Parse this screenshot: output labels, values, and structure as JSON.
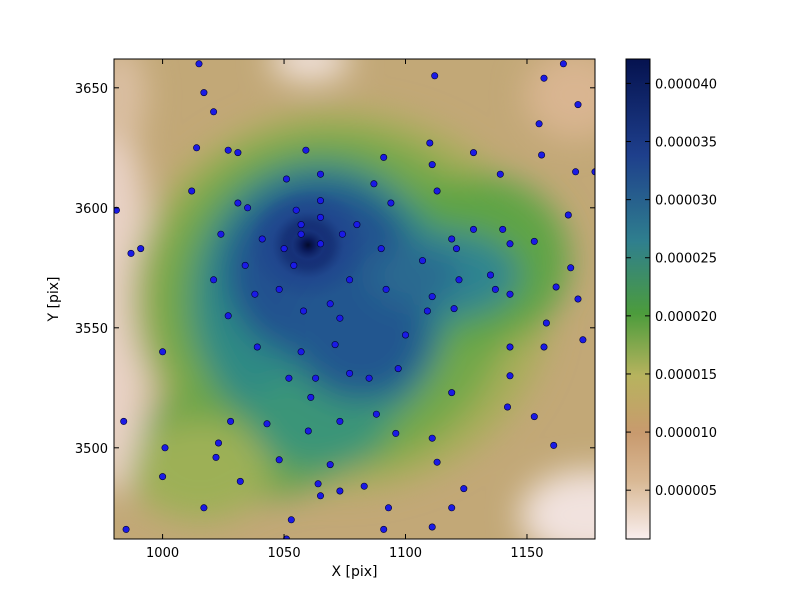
{
  "chart_data": {
    "type": "heatmap",
    "title": "",
    "xlabel": "X [pix]",
    "ylabel": "Y [pix]",
    "xlim": [
      980,
      1178
    ],
    "ylim": [
      3462,
      3662
    ],
    "xticks": [
      1000,
      1050,
      1100,
      1150
    ],
    "yticks": [
      3500,
      3550,
      3600,
      3650
    ],
    "grid": false,
    "colorbar": {
      "range": [
        8e-07,
        4.21e-05
      ],
      "ticks": [
        5e-06,
        1e-05,
        1.5e-05,
        2e-05,
        2.5e-05,
        3e-05,
        3.5e-05,
        4e-05
      ],
      "tick_labels": [
        "0.000005",
        "0.000010",
        "0.000015",
        "0.000020",
        "0.000025",
        "0.000030",
        "0.000035",
        "0.000040"
      ],
      "colormap": [
        "#f9eeee",
        "#c89a6e",
        "#b7b35e",
        "#4c9c3c",
        "#2f7f8e",
        "#1e3f8c",
        "#05124f"
      ]
    },
    "marker_color": "#1a1ae6",
    "points": [
      [
        1015,
        3660
      ],
      [
        1017,
        3648
      ],
      [
        1021,
        3640
      ],
      [
        1014,
        3625
      ],
      [
        1027,
        3624
      ],
      [
        1031,
        3623
      ],
      [
        1059,
        3624
      ],
      [
        1065,
        3614
      ],
      [
        1051,
        3612
      ],
      [
        1112,
        3655
      ],
      [
        1157,
        3654
      ],
      [
        1171,
        3643
      ],
      [
        1165,
        3660
      ],
      [
        1155,
        3635
      ],
      [
        1110,
        3627
      ],
      [
        1111,
        3618
      ],
      [
        1128,
        3623
      ],
      [
        1091,
        3621
      ],
      [
        1087,
        3610
      ],
      [
        1012,
        3607
      ],
      [
        981,
        3599
      ],
      [
        1031,
        3602
      ],
      [
        1035,
        3600
      ],
      [
        1055,
        3599
      ],
      [
        1065,
        3603
      ],
      [
        1065,
        3596
      ],
      [
        1057,
        3593
      ],
      [
        1080,
        3593
      ],
      [
        1094,
        3602
      ],
      [
        1113,
        3607
      ],
      [
        1139,
        3614
      ],
      [
        1156,
        3622
      ],
      [
        1170,
        3615
      ],
      [
        1178,
        3615
      ],
      [
        1167,
        3597
      ],
      [
        1024,
        3589
      ],
      [
        1041,
        3587
      ],
      [
        1050,
        3583
      ],
      [
        1057,
        3589
      ],
      [
        1065,
        3585
      ],
      [
        1074,
        3589
      ],
      [
        1090,
        3583
      ],
      [
        1107,
        3578
      ],
      [
        1119,
        3587
      ],
      [
        1121,
        3583
      ],
      [
        1128,
        3591
      ],
      [
        1140,
        3591
      ],
      [
        1143,
        3585
      ],
      [
        1153,
        3586
      ],
      [
        978,
        3588
      ],
      [
        987,
        3581
      ],
      [
        991,
        3583
      ],
      [
        1034,
        3576
      ],
      [
        1054,
        3576
      ],
      [
        1021,
        3570
      ],
      [
        1038,
        3564
      ],
      [
        1048,
        3566
      ],
      [
        1077,
        3570
      ],
      [
        1069,
        3560
      ],
      [
        1073,
        3554
      ],
      [
        1092,
        3566
      ],
      [
        1111,
        3563
      ],
      [
        1109,
        3557
      ],
      [
        1120,
        3558
      ],
      [
        1122,
        3570
      ],
      [
        1135,
        3572
      ],
      [
        1137,
        3566
      ],
      [
        1143,
        3564
      ],
      [
        1162,
        3567
      ],
      [
        1168,
        3575
      ],
      [
        1171,
        3562
      ],
      [
        1027,
        3555
      ],
      [
        1039,
        3542
      ],
      [
        1057,
        3540
      ],
      [
        1058,
        3557
      ],
      [
        1071,
        3543
      ],
      [
        1100,
        3547
      ],
      [
        1143,
        3542
      ],
      [
        1158,
        3552
      ],
      [
        1157,
        3542
      ],
      [
        1173,
        3545
      ],
      [
        1000,
        3540
      ],
      [
        1052,
        3529
      ],
      [
        1063,
        3529
      ],
      [
        1077,
        3531
      ],
      [
        1085,
        3529
      ],
      [
        1097,
        3533
      ],
      [
        1119,
        3523
      ],
      [
        1143,
        3530
      ],
      [
        1142,
        3517
      ],
      [
        1153,
        3513
      ],
      [
        984,
        3511
      ],
      [
        1028,
        3511
      ],
      [
        1043,
        3510
      ],
      [
        1061,
        3521
      ],
      [
        1073,
        3511
      ],
      [
        1088,
        3514
      ],
      [
        1096,
        3506
      ],
      [
        1111,
        3504
      ],
      [
        1001,
        3500
      ],
      [
        1023,
        3502
      ],
      [
        1022,
        3496
      ],
      [
        1048,
        3495
      ],
      [
        1060,
        3507
      ],
      [
        1069,
        3493
      ],
      [
        1113,
        3494
      ],
      [
        1161,
        3501
      ],
      [
        1000,
        3488
      ],
      [
        1032,
        3486
      ],
      [
        1064,
        3485
      ],
      [
        1073,
        3482
      ],
      [
        1083,
        3484
      ],
      [
        1124,
        3483
      ],
      [
        1017,
        3475
      ],
      [
        1053,
        3470
      ],
      [
        1065,
        3480
      ],
      [
        1093,
        3475
      ],
      [
        1119,
        3475
      ],
      [
        985,
        3466
      ],
      [
        1051,
        3462
      ],
      [
        1091,
        3466
      ],
      [
        1111,
        3467
      ]
    ]
  }
}
